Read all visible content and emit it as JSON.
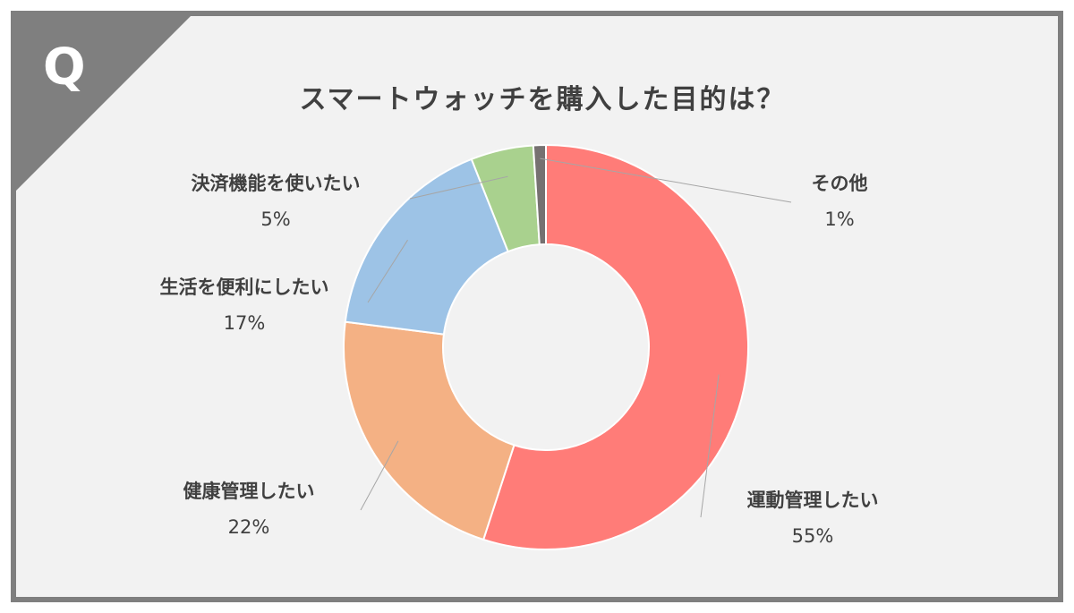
{
  "badge": {
    "letter": "Q"
  },
  "chart_data": {
    "type": "pie",
    "donut": true,
    "title": "スマートウォッチを購入した目的は？",
    "slices": [
      {
        "label": "運動管理したい",
        "value": 55,
        "value_label": "55%",
        "color": "#ff7c78"
      },
      {
        "label": "健康管理したい",
        "value": 22,
        "value_label": "22%",
        "color": "#f4b184"
      },
      {
        "label": "生活を便利にしたい",
        "value": 17,
        "value_label": "17%",
        "color": "#9dc3e6"
      },
      {
        "label": "決済機能を使いたい",
        "value": 5,
        "value_label": "5%",
        "color": "#a9d18e"
      },
      {
        "label": "その他",
        "value": 1,
        "value_label": "1%",
        "color": "#767171"
      }
    ],
    "start_angle": "12 o'clock",
    "direction": "clockwise",
    "legend": "none"
  },
  "colors": {
    "frame": "#7f7f7f",
    "background": "#f2f2f2",
    "text": "#404040",
    "leader": "#a6a6a6"
  }
}
